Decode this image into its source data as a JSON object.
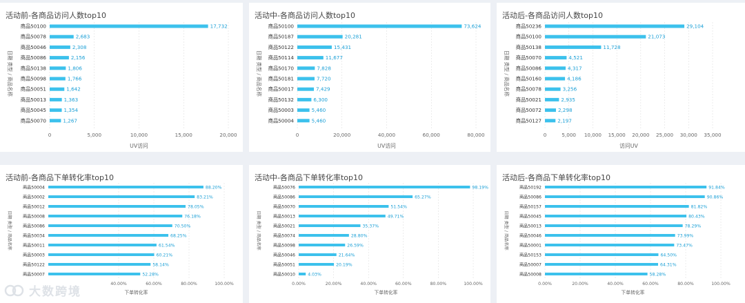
{
  "watermark": "大数跨境",
  "colors": {
    "bar": "#3cc1ec",
    "label": "#1a9fd6",
    "axis": "#666666",
    "grid": "#d8d8d8"
  },
  "chart_data": [
    {
      "type": "bar",
      "orientation": "horizontal",
      "title": "活动前-各商品访问人数top10",
      "xlabel": "UV访问",
      "ylabel": "日期 类型 / 商品名称",
      "categories": [
        "商品50100",
        "商品50078",
        "商品50046",
        "商品50086",
        "商品50138",
        "商品50098",
        "商品50051",
        "商品50013",
        "商品50045",
        "商品50070"
      ],
      "values": [
        17732,
        2683,
        2308,
        2156,
        1806,
        1766,
        1642,
        1363,
        1354,
        1267
      ],
      "labels": [
        "17,732",
        "2,683",
        "2,308",
        "2,156",
        "1,806",
        "1,766",
        "1,642",
        "1,363",
        "1,354",
        "1,267"
      ],
      "xlim": [
        0,
        20000
      ],
      "ticks": [
        0,
        5000,
        10000,
        15000,
        20000
      ],
      "tick_labels": [
        "0",
        "5,000",
        "10,000",
        "15,000",
        "20,000"
      ]
    },
    {
      "type": "bar",
      "orientation": "horizontal",
      "title": "活动中-各商品访问人数top10",
      "xlabel": "UV访问",
      "ylabel": "日期 类型 / 商品名称",
      "categories": [
        "商品50100",
        "商品50187",
        "商品50122",
        "商品50114",
        "商品50170",
        "商品50181",
        "商品50017",
        "商品50132",
        "商品50003",
        "商品50004"
      ],
      "values": [
        73624,
        20281,
        15431,
        11677,
        7828,
        7720,
        7429,
        6300,
        5460,
        5460
      ],
      "labels": [
        "73,624",
        "20,281",
        "15,431",
        "11,677",
        "7,828",
        "7,720",
        "7,429",
        "6,300",
        "5,460",
        "5,460"
      ],
      "xlim": [
        0,
        80000
      ],
      "ticks": [
        0,
        20000,
        40000,
        60000,
        80000
      ],
      "tick_labels": [
        "0",
        "20,000",
        "40,000",
        "60,000",
        "80,000"
      ]
    },
    {
      "type": "bar",
      "orientation": "horizontal",
      "title": "活动后-各商品访问人数top10",
      "xlabel": "访问UV",
      "ylabel": "日期 类型 / 商品名称",
      "categories": [
        "商品50236",
        "商品50100",
        "商品50138",
        "商品50070",
        "商品50086",
        "商品50160",
        "商品50078",
        "商品50021",
        "商品50072",
        "商品50127"
      ],
      "values": [
        29104,
        21073,
        11728,
        4521,
        4317,
        4186,
        3256,
        2935,
        2298,
        2197
      ],
      "labels": [
        "29,104",
        "21,073",
        "11,728",
        "4,521",
        "4,317",
        "4,186",
        "3,256",
        "2,935",
        "2,298",
        "2,197"
      ],
      "xlim": [
        0,
        35000
      ],
      "ticks": [
        0,
        5000,
        10000,
        15000,
        20000,
        25000,
        30000,
        35000
      ],
      "tick_labels": [
        "0",
        "5,000",
        "10,000",
        "15,000",
        "20,000",
        "25,000",
        "30,000",
        "35,000"
      ]
    },
    {
      "type": "bar",
      "orientation": "horizontal",
      "title": "活动前-各商品下单转化率top10",
      "xlabel": "下单转化率",
      "ylabel": "日期 类型 / 商品名称",
      "categories": [
        "商品50004",
        "商品50002",
        "商品50012",
        "商品50008",
        "商品50086",
        "商品50034",
        "商品50011",
        "商品50003",
        "商品50122",
        "商品50007"
      ],
      "values": [
        88.2,
        83.21,
        78.05,
        76.18,
        70.5,
        68.25,
        61.54,
        60.21,
        58.14,
        52.28
      ],
      "labels": [
        "88.20%",
        "83.21%",
        "78.05%",
        "76.18%",
        "70.50%",
        "68.25%",
        "61.54%",
        "60.21%",
        "58.14%",
        "52.28%"
      ],
      "xlim": [
        0,
        100
      ],
      "ticks": [
        40,
        60,
        80,
        100
      ],
      "tick_labels": [
        "40.00%",
        "60.00%",
        "80.00%",
        "100.00%"
      ]
    },
    {
      "type": "bar",
      "orientation": "horizontal",
      "title": "活动中-各商品下单转化率top10",
      "xlabel": "下单转化率",
      "ylabel": "日期 类型 / 商品名称",
      "categories": [
        "商品50076",
        "商品50086",
        "商品50070",
        "商品50013",
        "商品50021",
        "商品50074",
        "商品50098",
        "商品50046",
        "商品50051",
        "商品50010"
      ],
      "values": [
        98.19,
        65.27,
        51.54,
        49.71,
        35.37,
        28.8,
        26.59,
        21.64,
        20.19,
        4.03
      ],
      "labels": [
        "98.19%",
        "65.27%",
        "51.54%",
        "49.71%",
        "35.37%",
        "28.80%",
        "26.59%",
        "21.64%",
        "20.19%",
        "4.03%"
      ],
      "xlim": [
        0,
        100
      ],
      "ticks": [
        0,
        20,
        40,
        60,
        80,
        100
      ],
      "tick_labels": [
        "0.00%",
        "20.00%",
        "40.00%",
        "60.00%",
        "80.00%",
        "100.00%"
      ]
    },
    {
      "type": "bar",
      "orientation": "horizontal",
      "title": "活动后-各商品下单转化率top10",
      "xlabel": "下单转化率",
      "ylabel": "日期 类型 / 商品名称",
      "categories": [
        "商品50192",
        "商品50086",
        "商品50157",
        "商品50045",
        "商品50013",
        "商品50046",
        "商品50001",
        "商品50153",
        "商品50007",
        "商品50008"
      ],
      "values": [
        91.84,
        90.86,
        81.82,
        80.43,
        78.29,
        73.99,
        73.47,
        64.5,
        64.31,
        58.28
      ],
      "labels": [
        "91.84%",
        "90.86%",
        "81.82%",
        "80.43%",
        "78.29%",
        "73.99%",
        "73.47%",
        "64.50%",
        "64.31%",
        "58.28%"
      ],
      "xlim": [
        0,
        100
      ],
      "ticks": [
        0,
        20,
        40,
        60,
        80,
        100
      ],
      "tick_labels": [
        "0.00%",
        "20.00%",
        "40.00%",
        "60.00%",
        "80.00%",
        "100.00%"
      ]
    }
  ]
}
